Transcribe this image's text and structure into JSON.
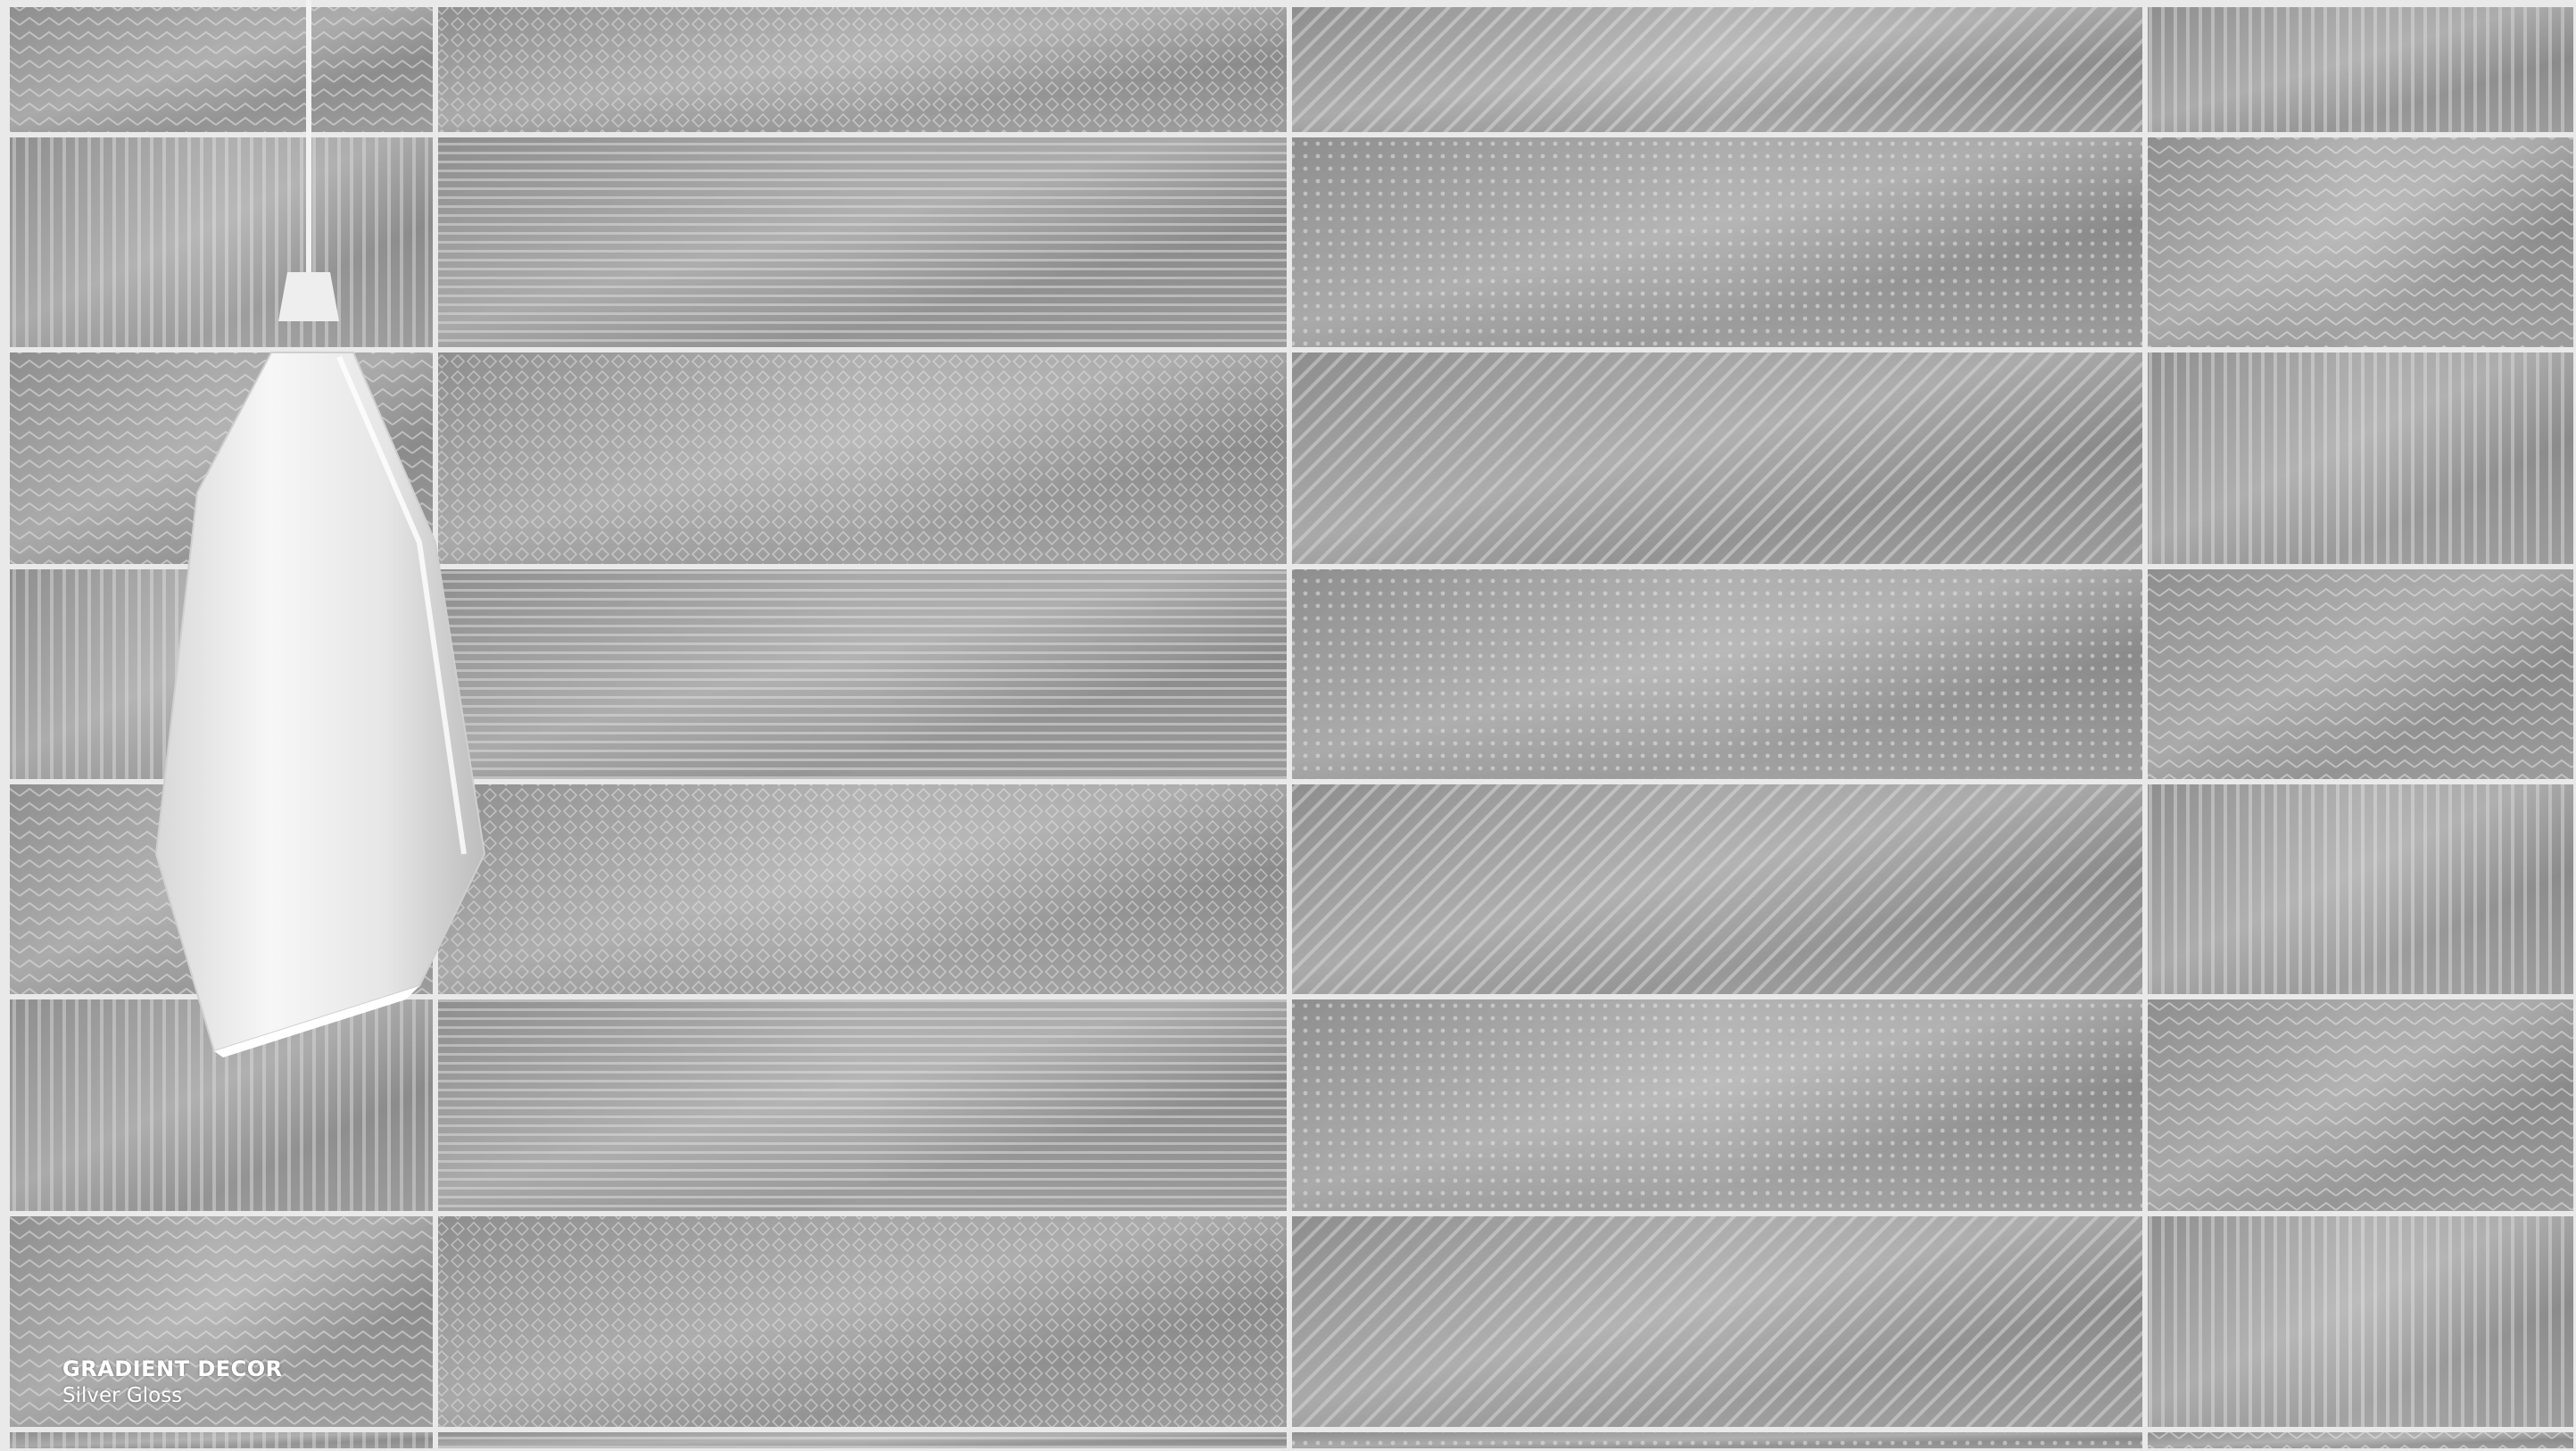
{
  "caption": {
    "title": "GRADIENT DECOR",
    "subtitle": "Silver Gloss"
  }
}
